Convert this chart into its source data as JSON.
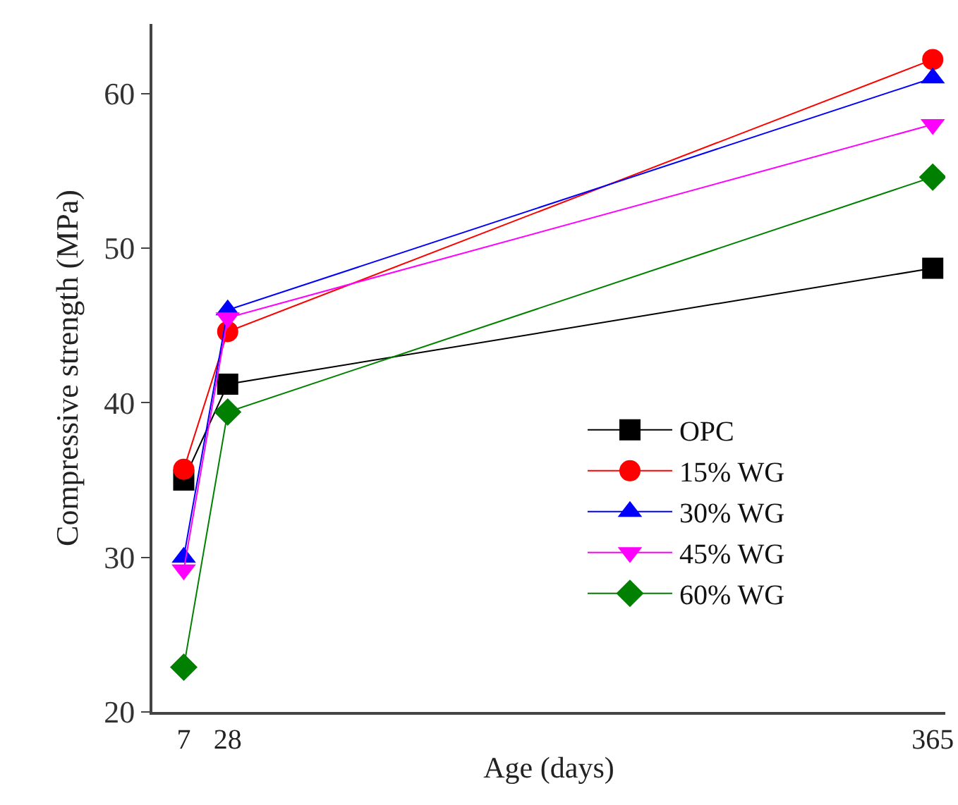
{
  "chart_data": {
    "type": "line",
    "xlabel": "Age (days)",
    "ylabel": "Compressive strength (MPa)",
    "x": [
      7,
      28,
      365
    ],
    "xlim": [
      -8,
      371
    ],
    "xticks": [
      7,
      28,
      365
    ],
    "ylim": [
      20,
      64.5
    ],
    "yticks": [
      20,
      30,
      40,
      50,
      60
    ],
    "grid": false,
    "legend": "bottom right",
    "line_style": "solid",
    "series": [
      {
        "name": "OPC",
        "color": "#000000",
        "marker": "square",
        "values": [
          35,
          41.2,
          48.7
        ]
      },
      {
        "name": "15% WG",
        "color": "#ff0000",
        "marker": "circle",
        "values": [
          35.7,
          44.6,
          62.2
        ]
      },
      {
        "name": "30% WG",
        "color": "#0000ff",
        "marker": "triangle",
        "values": [
          30,
          46,
          61
        ]
      },
      {
        "name": "45% WG",
        "color": "#ff00ff",
        "marker": "triangle-down",
        "values": [
          29.2,
          45.5,
          58
        ]
      },
      {
        "name": "60% WG",
        "color": "#008000",
        "marker": "diamond",
        "values": [
          22.9,
          39.4,
          54.6
        ]
      }
    ]
  }
}
